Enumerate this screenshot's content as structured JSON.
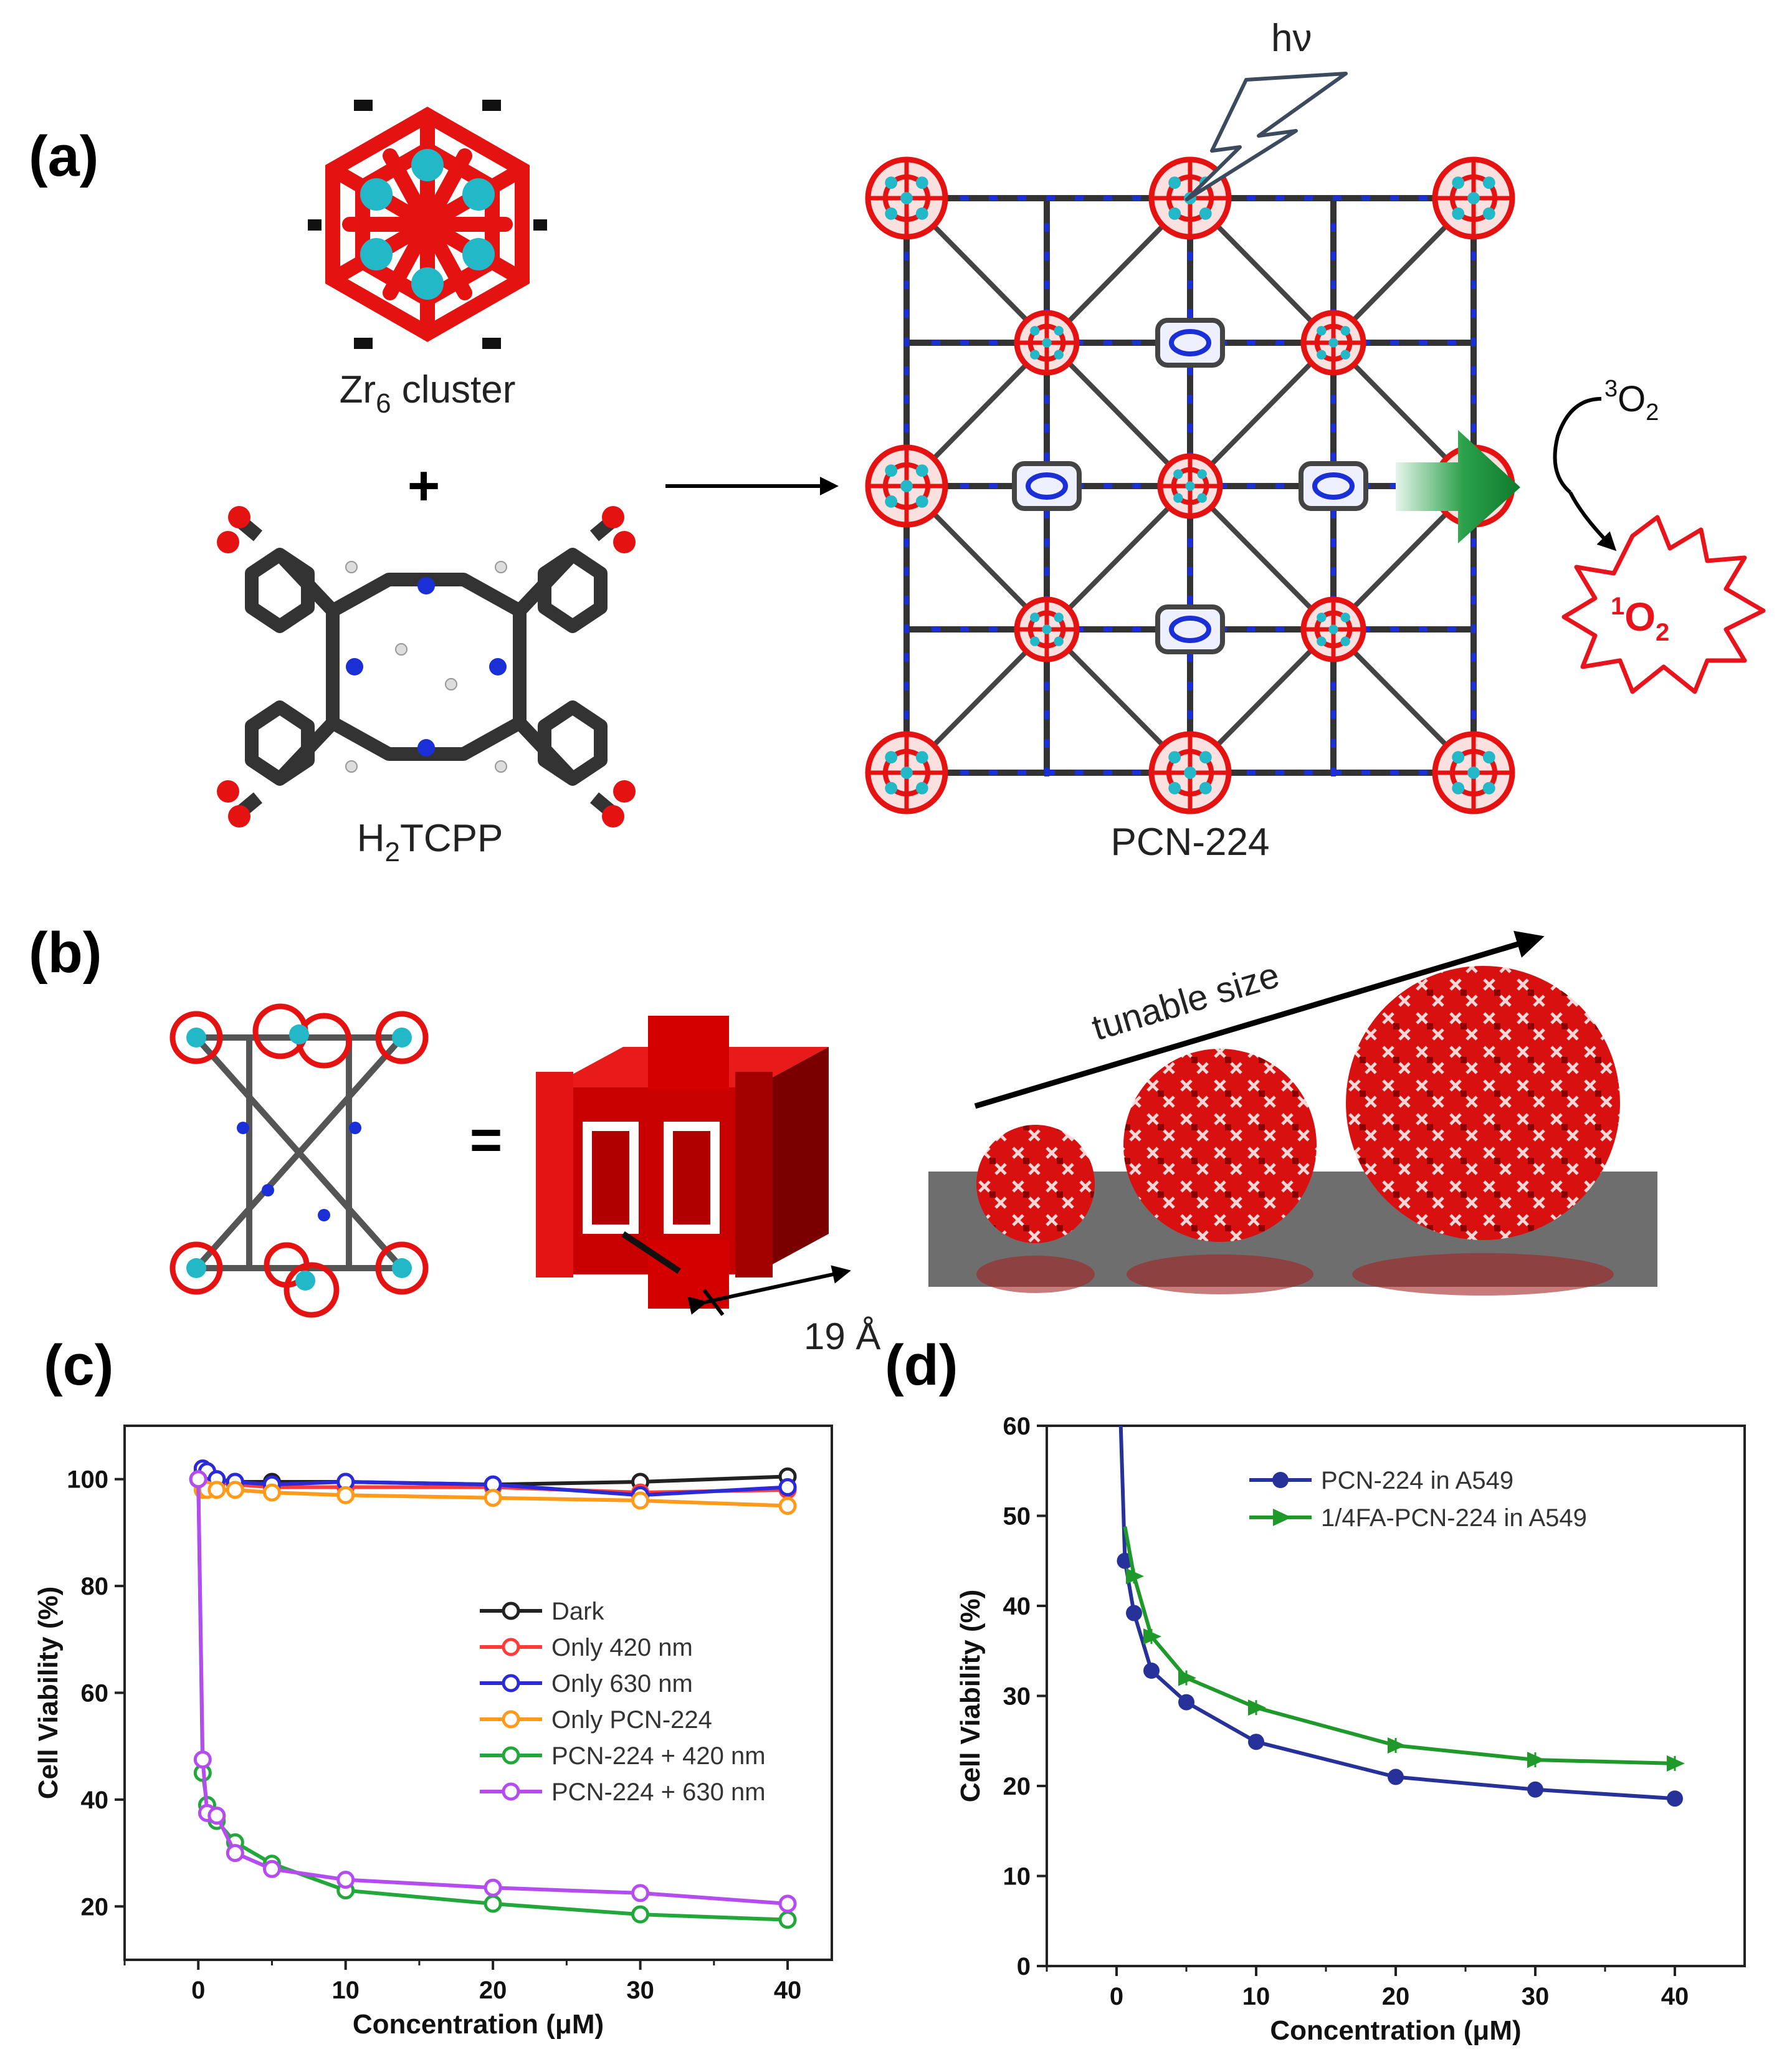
{
  "panels": {
    "a": {
      "label": "(a)",
      "zr6_caption": "Zr",
      "zr6_sub": "6",
      "zr6_tail": " cluster",
      "plus": "+",
      "linker_caption_pre": "H",
      "linker_caption_sub": "2",
      "linker_caption_post": "TCPP",
      "framework_caption": "PCN-224",
      "light": "hν",
      "triplet_o2_sup": "3",
      "triplet_o2": "O",
      "triplet_o2_sub": "2",
      "singlet_o2_sup": "1",
      "singlet_o2": "O",
      "singlet_o2_sub": "2"
    },
    "b": {
      "label": "(b)",
      "equals": "=",
      "pore_size": "19 Å",
      "arrow_text": "tunable size"
    },
    "c": {
      "label": "(c)"
    },
    "d": {
      "label": "(d)"
    }
  },
  "colors": {
    "oxygen": "#e51212",
    "zirconium": "#22b8c8",
    "carbon": "#444444",
    "nitrogen": "#1a2fd6",
    "substrate": "#6e6e6e",
    "arrow_green": "#1f9a3c"
  },
  "chart_data": [
    {
      "type": "line",
      "panel": "c",
      "xlabel": "Concentration (μM)",
      "ylabel": "Cell Viability (%)",
      "xlim": [
        -5,
        43
      ],
      "ylim": [
        10,
        110
      ],
      "xticks": [
        0,
        10,
        20,
        30,
        40
      ],
      "yticks": [
        20,
        40,
        60,
        80,
        100
      ],
      "legend_position": "center-right",
      "x": [
        0,
        0.3,
        0.6,
        1.25,
        2.5,
        5,
        10,
        20,
        30,
        40
      ],
      "series": [
        {
          "name": "Dark",
          "color": "#222222",
          "values": [
            100,
            101.5,
            101,
            100,
            99.5,
            99.5,
            99.5,
            99,
            99.5,
            100.5
          ]
        },
        {
          "name": "Only 420 nm",
          "color": "#ff3b3b",
          "values": [
            100,
            101,
            100.5,
            99.5,
            99,
            98.5,
            98.5,
            98.5,
            97.5,
            98
          ]
        },
        {
          "name": "Only 630 nm",
          "color": "#2a2ad8",
          "values": [
            100,
            102,
            101.5,
            100,
            99.5,
            99,
            99.5,
            99,
            97,
            98.5
          ]
        },
        {
          "name": "Only PCN-224",
          "color": "#ff9a1a",
          "values": [
            100,
            98,
            98,
            98,
            98,
            97.5,
            97,
            96.5,
            96,
            95
          ]
        },
        {
          "name": "PCN-224 + 420 nm",
          "color": "#22a83a",
          "values": [
            100,
            45,
            39,
            36,
            32,
            28,
            23,
            20.5,
            18.5,
            17.5
          ]
        },
        {
          "name": "PCN-224 + 630 nm",
          "color": "#b44cf0",
          "values": [
            100,
            47.5,
            37.5,
            37,
            30,
            27,
            25,
            23.5,
            22.5,
            20.5
          ]
        }
      ]
    },
    {
      "type": "line",
      "panel": "d",
      "xlabel": "Concentration (μM)",
      "ylabel": "Cell Viability (%)",
      "xlim": [
        -5,
        45
      ],
      "ylim": [
        0,
        60
      ],
      "xticks": [
        0,
        10,
        20,
        30,
        40
      ],
      "yticks": [
        0,
        10,
        20,
        30,
        40,
        50,
        60
      ],
      "legend_position": "top-right",
      "series": [
        {
          "name": "PCN-224 in A549",
          "color": "#27319a",
          "marker": "circle",
          "x": [
            0.3,
            0.6,
            1.25,
            2.5,
            5,
            10,
            20,
            30,
            40
          ],
          "values": [
            60,
            45,
            39.2,
            32.8,
            29.3,
            24.9,
            21,
            19.6,
            18.6
          ]
        },
        {
          "name": "1/4FA-PCN-224 in A549",
          "color": "#1f9a2a",
          "marker": "triangle",
          "x": [
            0.6,
            1.25,
            2.5,
            5,
            10,
            20,
            30,
            40
          ],
          "values": [
            48.8,
            43.3,
            36.6,
            32,
            28.7,
            24.5,
            22.9,
            22.5
          ]
        }
      ]
    }
  ]
}
